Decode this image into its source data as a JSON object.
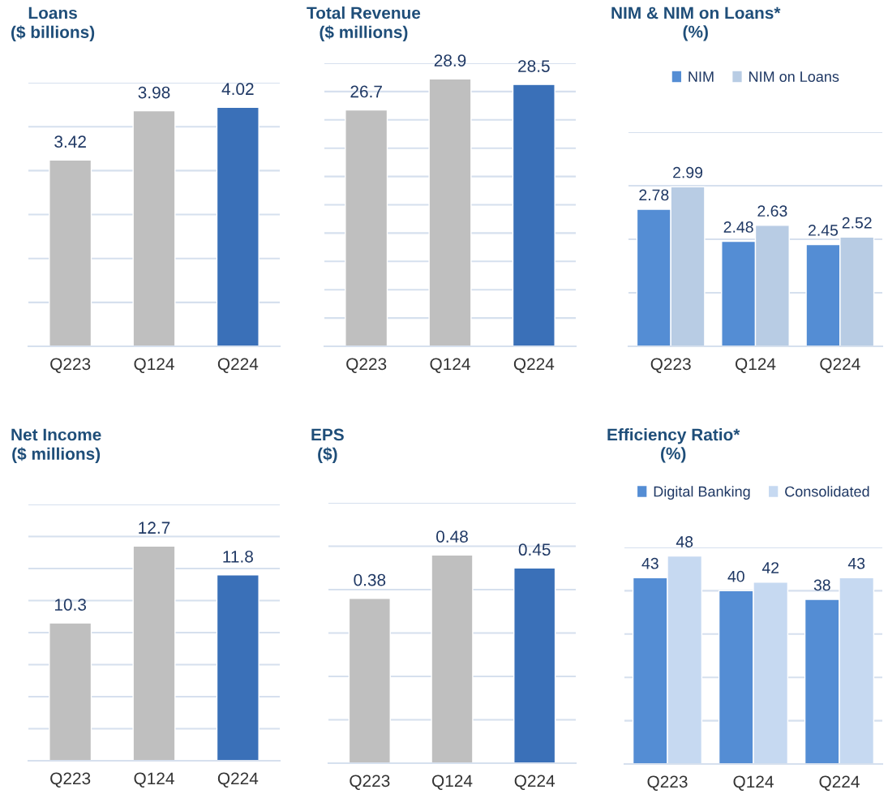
{
  "chart_data": [
    {
      "type": "bar",
      "title": "Loans",
      "subtitle": "($ billions)",
      "categories": [
        "Q223",
        "Q124",
        "Q224"
      ],
      "values": [
        3.42,
        3.98,
        4.02
      ],
      "colors": [
        "#bfbfbf",
        "#bfbfbf",
        "#3a70b8"
      ],
      "ylim": [
        1.3,
        4.3
      ],
      "yticks": [
        {
          "value": 1.3,
          "label": null
        },
        {
          "value": 1.8,
          "label": null
        },
        {
          "value": 2.3,
          "label": null
        },
        {
          "value": 2.8,
          "label": null
        },
        {
          "value": 3.3,
          "label": null
        },
        {
          "value": 3.8,
          "label": null
        },
        {
          "value": 4.3,
          "label": null
        }
      ],
      "tick_labels": "x",
      "grid": "y",
      "data_labels": true
    },
    {
      "type": "bar",
      "title": "Total Revenue",
      "subtitle": "($ millions)",
      "categories": [
        "Q223",
        "Q124",
        "Q224"
      ],
      "values": [
        26.7,
        28.9,
        28.5
      ],
      "colors": [
        "#bfbfbf",
        "#bfbfbf",
        "#3a70b8"
      ],
      "ylim": [
        10,
        30
      ],
      "yticks": [
        {
          "value": 10,
          "label": null
        },
        {
          "value": 12,
          "label": null
        },
        {
          "value": 14,
          "label": null
        },
        {
          "value": 16,
          "label": null
        },
        {
          "value": 18,
          "label": null
        },
        {
          "value": 20,
          "label": null
        },
        {
          "value": 22,
          "label": null
        },
        {
          "value": 24,
          "label": null
        },
        {
          "value": 26,
          "label": null
        },
        {
          "value": 28,
          "label": null
        },
        {
          "value": 30,
          "label": null
        }
      ],
      "tick_labels": "x",
      "grid": "y",
      "data_labels": true
    },
    {
      "type": "bar",
      "title": "NIM & NIM on Loans*",
      "subtitle": "(%)",
      "categories": [
        "Q223",
        "Q124",
        "Q224"
      ],
      "series": [
        {
          "name": "NIM",
          "color": "#548dd4",
          "values": [
            2.78,
            2.48,
            2.45
          ]
        },
        {
          "name": "NIM on Loans",
          "color": "#b8cce4",
          "values": [
            2.99,
            2.63,
            2.52
          ]
        }
      ],
      "ylim": [
        1.5,
        3.5
      ],
      "yticks": [
        {
          "value": 1.5,
          "label": null
        },
        {
          "value": 2.0,
          "label": null
        },
        {
          "value": 2.5,
          "label": null
        },
        {
          "value": 3.0,
          "label": null
        },
        {
          "value": 3.5,
          "label": null
        }
      ],
      "tick_labels": "x",
      "grid": "y",
      "legend": "top",
      "data_labels": true
    },
    {
      "type": "bar",
      "title": "Net Income",
      "subtitle": "($ millions)",
      "categories": [
        "Q223",
        "Q124",
        "Q224"
      ],
      "values": [
        10.3,
        12.7,
        11.8
      ],
      "colors": [
        "#bfbfbf",
        "#bfbfbf",
        "#3a70b8"
      ],
      "ylim": [
        6,
        14
      ],
      "yticks": [
        {
          "value": 6,
          "label": null
        },
        {
          "value": 7,
          "label": null
        },
        {
          "value": 8,
          "label": null
        },
        {
          "value": 9,
          "label": null
        },
        {
          "value": 10,
          "label": null
        },
        {
          "value": 11,
          "label": null
        },
        {
          "value": 12,
          "label": null
        },
        {
          "value": 13,
          "label": null
        },
        {
          "value": 14,
          "label": null
        }
      ],
      "tick_labels": "x",
      "grid": "y",
      "data_labels": true
    },
    {
      "type": "bar",
      "title": "EPS",
      "subtitle": "($)",
      "categories": [
        "Q223",
        "Q124",
        "Q224"
      ],
      "values": [
        0.38,
        0.48,
        0.45
      ],
      "colors": [
        "#bfbfbf",
        "#bfbfbf",
        "#3a70b8"
      ],
      "ylim": [
        0,
        0.6
      ],
      "yticks": [
        {
          "value": 0,
          "label": null
        },
        {
          "value": 0.1,
          "label": null
        },
        {
          "value": 0.2,
          "label": null
        },
        {
          "value": 0.3,
          "label": null
        },
        {
          "value": 0.4,
          "label": null
        },
        {
          "value": 0.5,
          "label": null
        },
        {
          "value": 0.6,
          "label": null
        }
      ],
      "tick_labels": "x",
      "grid": "y",
      "data_labels": true
    },
    {
      "type": "bar",
      "title": "Efficiency Ratio*",
      "subtitle": "(%)",
      "categories": [
        "Q223",
        "Q124",
        "Q224"
      ],
      "series": [
        {
          "name": "Digital Banking",
          "color": "#548dd4",
          "values": [
            43,
            40,
            38
          ]
        },
        {
          "name": "Consolidated",
          "color": "#c6d9f1",
          "values": [
            48,
            42,
            43
          ]
        }
      ],
      "ylim": [
        0,
        50
      ],
      "yticks": [
        {
          "value": 0,
          "label": null
        },
        {
          "value": 10,
          "label": null
        },
        {
          "value": 20,
          "label": null
        },
        {
          "value": 30,
          "label": null
        },
        {
          "value": 40,
          "label": null
        },
        {
          "value": 50,
          "label": null
        }
      ],
      "tick_labels": "x",
      "grid": "y",
      "legend": "top",
      "data_labels": true
    }
  ]
}
